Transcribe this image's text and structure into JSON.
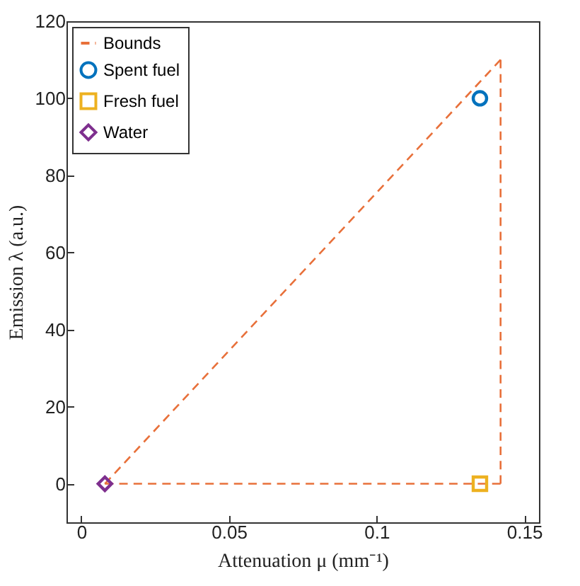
{
  "chart_data": {
    "type": "scatter",
    "xlabel": "Attenuation μ (mm⁻¹)",
    "ylabel": "Emission λ (a.u.)",
    "xlim": [
      -0.005,
      0.155
    ],
    "xticks": [
      0,
      0.05,
      0.1,
      0.15
    ],
    "ylim": [
      -10,
      120
    ],
    "yticks": [
      0,
      20,
      40,
      60,
      80,
      100,
      120
    ],
    "legend": "top left",
    "series": [
      {
        "name": "Bounds",
        "type": "line",
        "line_style": "dashed",
        "marker": "none",
        "color": "#e8703a",
        "x": [
          0.008,
          0.142
        ],
        "values": [
          0,
          110
        ]
      },
      {
        "type": "line",
        "line_style": "dashed",
        "marker": "none",
        "color": "#e8703a",
        "x": [
          0.142,
          0.142
        ],
        "values": [
          110,
          0
        ]
      },
      {
        "type": "line",
        "line_style": "dashed",
        "marker": "none",
        "color": "#e8703a",
        "x": [
          0.008,
          0.142
        ],
        "values": [
          0,
          0
        ]
      },
      {
        "name": "Spent fuel",
        "type": "scatter",
        "marker": "circle",
        "color": "#0072bd",
        "x": [
          0.135
        ],
        "values": [
          100
        ]
      },
      {
        "name": "Fresh fuel",
        "type": "scatter",
        "marker": "square",
        "color": "#edb120",
        "x": [
          0.135
        ],
        "values": [
          0
        ]
      },
      {
        "name": "Water",
        "type": "scatter",
        "marker": "diamond",
        "color": "#7e2f8e",
        "x": [
          0.008
        ],
        "values": [
          0
        ]
      }
    ]
  }
}
